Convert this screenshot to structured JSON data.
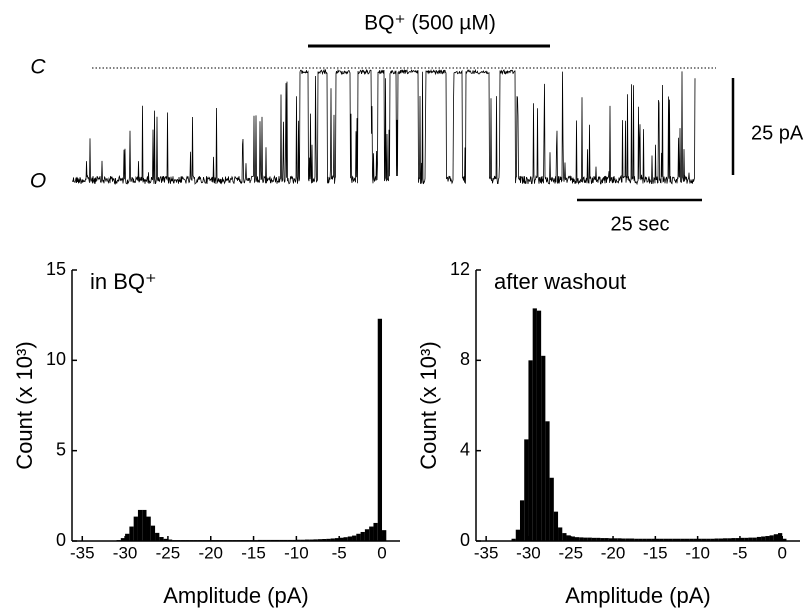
{
  "trace": {
    "label": "BQ⁺ (500 µM)",
    "closed_label": "C",
    "open_label": "O",
    "scale_y": "25 pA",
    "scale_x": "25 sec"
  },
  "chart_data": [
    {
      "type": "histogram",
      "annotation": "in BQ⁺",
      "xlabel": "Amplitude (pA)",
      "ylabel": "Count (x 10³)",
      "color": "#000000",
      "bins": [
        -32,
        -31.5,
        -31,
        -30.5,
        -30,
        -29.5,
        -29,
        -28.5,
        -28,
        -27.5,
        -27,
        -26.5,
        -26,
        -25.5,
        -25,
        -24.5,
        -24,
        -23.5,
        -23,
        -22.5,
        -22,
        -21.5,
        -21,
        -20.5,
        -20,
        -19.5,
        -19,
        -18.5,
        -18,
        -17.5,
        -17,
        -16.5,
        -16,
        -15.5,
        -15,
        -14.5,
        -14,
        -13.5,
        -13,
        -12.5,
        -12,
        -11.5,
        -11,
        -10.5,
        -10,
        -9.5,
        -9,
        -8.5,
        -8,
        -7.5,
        -7,
        -6.5,
        -6,
        -5.5,
        -5,
        -4.5,
        -4,
        -3.5,
        -3,
        -2.5,
        -2,
        -1.5,
        -1,
        -0.5,
        0,
        0.5
      ],
      "values": [
        0.0,
        0.02,
        0.05,
        0.16,
        0.4,
        0.8,
        1.35,
        1.72,
        1.72,
        1.35,
        0.85,
        0.45,
        0.22,
        0.12,
        0.08,
        0.05,
        0.05,
        0.05,
        0.05,
        0.05,
        0.05,
        0.05,
        0.05,
        0.05,
        0.05,
        0.05,
        0.05,
        0.05,
        0.05,
        0.05,
        0.05,
        0.05,
        0.05,
        0.05,
        0.05,
        0.06,
        0.06,
        0.06,
        0.06,
        0.06,
        0.06,
        0.06,
        0.06,
        0.06,
        0.07,
        0.07,
        0.08,
        0.08,
        0.09,
        0.1,
        0.11,
        0.12,
        0.14,
        0.16,
        0.18,
        0.21,
        0.25,
        0.3,
        0.4,
        0.5,
        0.65,
        0.8,
        1.0,
        12.3,
        0.6
      ],
      "xlim": [
        -36.2,
        2.1
      ],
      "xticks": [
        -35,
        -30,
        -25,
        -20,
        -15,
        -10,
        -5,
        0
      ],
      "ylim": [
        0,
        15
      ],
      "yticks": [
        0,
        5,
        10,
        15
      ]
    },
    {
      "type": "histogram",
      "annotation": "after washout",
      "xlabel": "Amplitude (pA)",
      "ylabel": "Count (x 10³)",
      "color": "#000000",
      "bins": [
        -32,
        -31.5,
        -31,
        -30.5,
        -30,
        -29.5,
        -29,
        -28.5,
        -28,
        -27.5,
        -27,
        -26.5,
        -26,
        -25.5,
        -25,
        -24.5,
        -24,
        -23.5,
        -23,
        -22.5,
        -22,
        -21.5,
        -21,
        -20.5,
        -20,
        -19.5,
        -19,
        -18.5,
        -18,
        -17.5,
        -17,
        -16.5,
        -16,
        -15.5,
        -15,
        -14.5,
        -14,
        -13.5,
        -13,
        -12.5,
        -12,
        -11.5,
        -11,
        -10.5,
        -10,
        -9.5,
        -9,
        -8.5,
        -8,
        -7.5,
        -7,
        -6.5,
        -6,
        -5.5,
        -5,
        -4.5,
        -4,
        -3.5,
        -3,
        -2.5,
        -2,
        -1.5,
        -1,
        -0.5,
        0,
        0.5
      ],
      "values": [
        0.1,
        0.5,
        1.8,
        4.5,
        8.0,
        10.3,
        10.2,
        8.2,
        5.3,
        2.8,
        1.3,
        0.6,
        0.35,
        0.25,
        0.2,
        0.17,
        0.16,
        0.15,
        0.15,
        0.14,
        0.14,
        0.13,
        0.13,
        0.12,
        0.12,
        0.12,
        0.11,
        0.11,
        0.11,
        0.1,
        0.1,
        0.1,
        0.1,
        0.1,
        0.1,
        0.1,
        0.1,
        0.1,
        0.1,
        0.1,
        0.1,
        0.1,
        0.1,
        0.1,
        0.1,
        0.1,
        0.1,
        0.1,
        0.11,
        0.11,
        0.12,
        0.12,
        0.13,
        0.13,
        0.14,
        0.14,
        0.15,
        0.15,
        0.18,
        0.2,
        0.22,
        0.25,
        0.3,
        0.35,
        0.1
      ],
      "xlim": [
        -36.2,
        2.1
      ],
      "xticks": [
        -35,
        -30,
        -25,
        -20,
        -15,
        -10,
        -5,
        0
      ],
      "ylim": [
        0,
        12
      ],
      "yticks": [
        0,
        4,
        8,
        12
      ]
    }
  ]
}
